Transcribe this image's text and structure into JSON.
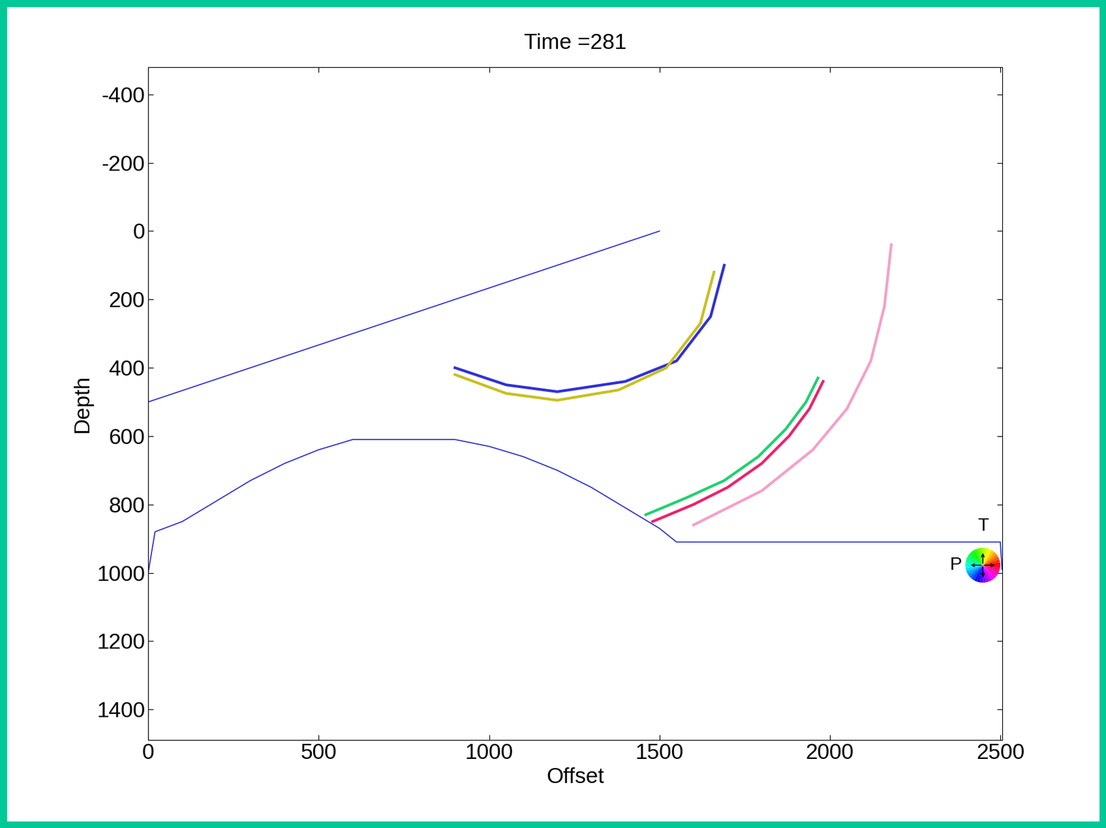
{
  "chart_data": {
    "type": "line",
    "title": "Time =281",
    "x_label": "Offset",
    "y_label": "Depth",
    "xlim": [
      0,
      2505
    ],
    "ylim": [
      1490,
      -480
    ],
    "xticks": [
      0,
      500,
      1000,
      1500,
      2000,
      2500
    ],
    "yticks": [
      -400,
      -200,
      0,
      200,
      400,
      600,
      800,
      1000,
      1200,
      1400
    ],
    "grid": false,
    "annotations": [
      "T",
      "P"
    ],
    "series": [
      {
        "color": "#2a2ad0",
        "line_style": "solid",
        "x": [
          0,
          300,
          600,
          900,
          1200,
          1500
        ],
        "values": [
          500,
          400,
          300,
          200,
          100,
          0
        ]
      },
      {
        "color": "#2a2ad0",
        "line_style": "solid",
        "x": [
          0,
          20,
          100,
          200,
          300,
          400,
          500,
          600,
          900,
          1000,
          1100,
          1200,
          1300,
          1400,
          1500,
          1550,
          2500,
          2505
        ],
        "values": [
          1000,
          880,
          850,
          790,
          730,
          680,
          640,
          610,
          610,
          630,
          660,
          700,
          750,
          810,
          870,
          910,
          910,
          990
        ]
      },
      {
        "color": "#f0206a",
        "line_style": "solid",
        "x": [
          1480,
          1600,
          1700,
          1800,
          1880,
          1940,
          1980
        ],
        "values": [
          850,
          800,
          750,
          680,
          600,
          520,
          440
        ]
      },
      {
        "color": "#20d070",
        "line_style": "solid",
        "x": [
          1460,
          1580,
          1690,
          1790,
          1870,
          1930,
          1965
        ],
        "values": [
          830,
          780,
          730,
          660,
          580,
          500,
          430
        ]
      },
      {
        "color": "#f5a0c8",
        "line_style": "solid",
        "x": [
          1600,
          1800,
          1950,
          2050,
          2120,
          2160,
          2180
        ],
        "values": [
          860,
          760,
          640,
          520,
          380,
          220,
          40
        ]
      },
      {
        "color": "#3030d8",
        "line_style": "solid",
        "x": [
          900,
          1050,
          1200,
          1400,
          1550,
          1650,
          1690
        ],
        "values": [
          400,
          450,
          470,
          440,
          380,
          250,
          100
        ]
      },
      {
        "color": "#c8c020",
        "line_style": "solid",
        "x": [
          900,
          1050,
          1200,
          1380,
          1520,
          1620,
          1660
        ],
        "values": [
          420,
          475,
          495,
          465,
          400,
          270,
          120
        ]
      }
    ]
  }
}
